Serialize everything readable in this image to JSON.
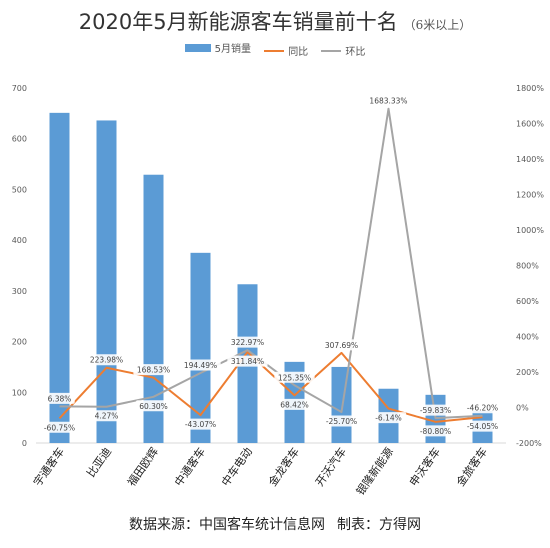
{
  "chart_data": {
    "type": "bar",
    "title": "2020年5月新能源客车销量前十名",
    "subtitle": "（6米以上）",
    "categories": [
      "宇通客车",
      "比亚迪",
      "福田欧辉",
      "中通客车",
      "中车电动",
      "金龙客车",
      "开沃汽车",
      "银隆新能源",
      "申沃客车",
      "金旅客车"
    ],
    "series": [
      {
        "name": "5月销量",
        "axis": "left",
        "type": "bar",
        "color": "#5b9bd5",
        "values": [
          651,
          636,
          529,
          375,
          313,
          160,
          150,
          107,
          95,
          63
        ]
      },
      {
        "name": "同比",
        "axis": "right",
        "type": "line",
        "color": "#ed7d31",
        "values": [
          -60.75,
          223.98,
          168.53,
          -43.07,
          311.84,
          68.42,
          307.69,
          -6.14,
          -80.8,
          -54.05
        ],
        "labels": [
          "-60.75%",
          "223.98%",
          "168.53%",
          "-43.07%",
          "311.84%",
          "68.42%",
          "307.69%",
          "-6.14%",
          "-80.80%",
          "-54.05%"
        ]
      },
      {
        "name": "环比",
        "axis": "right",
        "type": "line",
        "color": "#a5a5a5",
        "values": [
          6.38,
          4.27,
          60.3,
          194.49,
          322.97,
          125.35,
          -25.7,
          1683.33,
          -59.83,
          -46.2
        ],
        "labels": [
          "6.38%",
          "4.27%",
          "60.30%",
          "194.49%",
          "322.97%",
          "125.35%",
          "-25.70%",
          "1683.33%",
          "-59.83%",
          "-46.20%"
        ]
      }
    ],
    "y_left": {
      "min": 0,
      "max": 700,
      "ticks": [
        "0",
        "100",
        "200",
        "300",
        "400",
        "500",
        "600",
        "700"
      ]
    },
    "y_right": {
      "min": -200,
      "max": 1800,
      "ticks": [
        "-200%",
        "0%",
        "200%",
        "400%",
        "600%",
        "800%",
        "1000%",
        "1200%",
        "1400%",
        "1600%",
        "1800%"
      ]
    },
    "grid": false,
    "legend_position": "top-center"
  },
  "legend": {
    "sales": "5月销量",
    "yoy": "同比",
    "mom": "环比"
  },
  "colors": {
    "bar": "#5b9bd5",
    "yoy": "#ed7d31",
    "mom": "#a5a5a5",
    "axis": "#d9d9d9",
    "tick_text": "#595959"
  },
  "footer": {
    "source": "数据来源：中国客车统计信息网",
    "maker": "制表：方得网"
  }
}
